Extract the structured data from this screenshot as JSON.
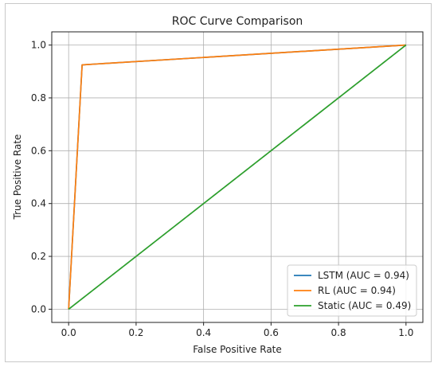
{
  "chart_data": {
    "type": "line",
    "title": "ROC Curve Comparison",
    "xlabel": "False Positive Rate",
    "ylabel": "True Positive Rate",
    "xlim": [
      -0.05,
      1.05
    ],
    "ylim": [
      -0.05,
      1.05
    ],
    "xticks": [
      0.0,
      0.2,
      0.4,
      0.6,
      0.8,
      1.0
    ],
    "yticks": [
      0.0,
      0.2,
      0.4,
      0.6,
      0.8,
      1.0
    ],
    "xtick_labels": [
      "0.0",
      "0.2",
      "0.4",
      "0.6",
      "0.8",
      "1.0"
    ],
    "ytick_labels": [
      "0.0",
      "0.2",
      "0.4",
      "0.6",
      "0.8",
      "1.0"
    ],
    "grid": true,
    "legend_position": "bottom-right",
    "series": [
      {
        "name": "LSTM (AUC = 0.94)",
        "color": "#1f77b4",
        "x": [
          0.0,
          0.04,
          1.0
        ],
        "y": [
          0.0,
          0.925,
          1.0
        ]
      },
      {
        "name": "RL (AUC = 0.94)",
        "color": "#ff7f0e",
        "x": [
          0.0,
          0.04,
          1.0
        ],
        "y": [
          0.0,
          0.925,
          1.0
        ]
      },
      {
        "name": "Static (AUC = 0.49)",
        "color": "#2ca02c",
        "x": [
          0.0,
          1.0
        ],
        "y": [
          0.0,
          1.0
        ]
      }
    ],
    "reference_line": {
      "color": "#808080",
      "style": "dashed",
      "x": [
        0.0,
        1.0
      ],
      "y": [
        0.0,
        1.0
      ]
    }
  }
}
